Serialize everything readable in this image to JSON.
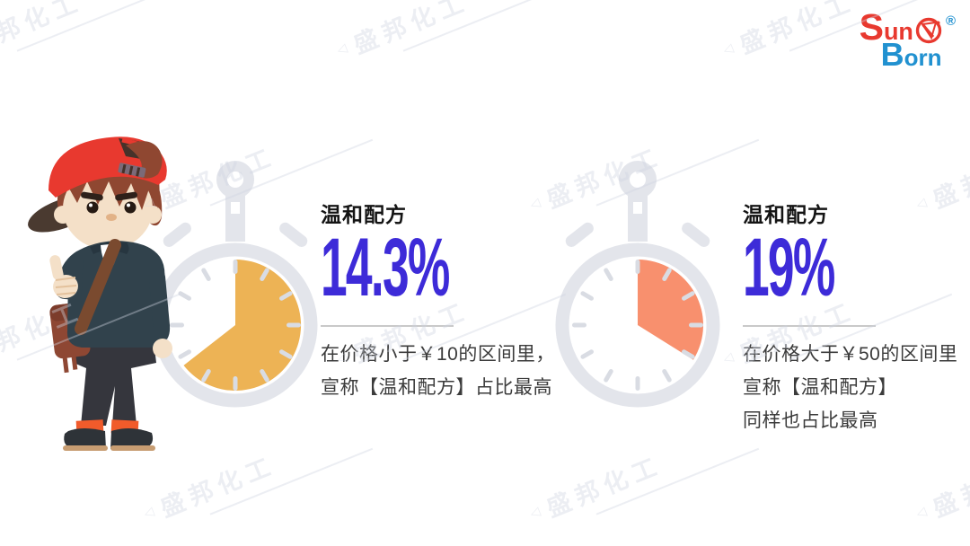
{
  "logo": {
    "brand_top": "Sun",
    "brand_bottom": "Born",
    "registered_mark": "®",
    "color_red": "#e8392f",
    "color_blue": "#2191d0"
  },
  "watermark": {
    "text": "盛邦化工"
  },
  "stats": [
    {
      "heading": "温和配方",
      "value": "14.3%",
      "description_lines": [
        "在价格小于￥10的区间里，",
        "宣称【温和配方】占比最高"
      ],
      "gauge": {
        "type": "stopwatch-pie",
        "sweep_deg": 232,
        "color": "#edb355"
      }
    },
    {
      "heading": "温和配方",
      "value": "19%",
      "description_lines": [
        "在价格大于￥50的区间里",
        "宣称【温和配方】",
        "同样也占比最高"
      ],
      "gauge": {
        "type": "stopwatch-pie",
        "sweep_deg": 122,
        "color": "#f8906e"
      }
    }
  ],
  "colors": {
    "stat_value": "#3d2bd8",
    "heading": "#141414",
    "description": "#3b3b3b",
    "stopwatch_gray": "#e3e5eb",
    "background": "#ffffff"
  }
}
